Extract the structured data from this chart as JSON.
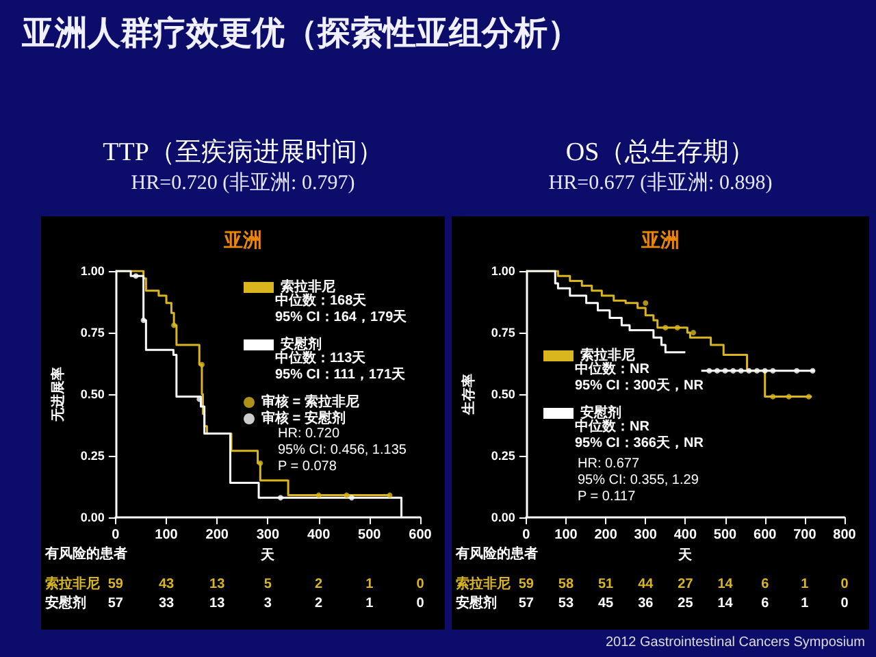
{
  "chart_data": [
    {
      "type": "step",
      "title": "TTP（至疾病进展时间）",
      "subtitle": "HR=0.720 (非亚洲: 0.797)",
      "xlabel": "天",
      "ylabel": "无进展率",
      "xlim": [
        0,
        600
      ],
      "xticks": [
        0,
        100,
        200,
        300,
        400,
        500,
        600
      ],
      "ylim": [
        0,
        1
      ],
      "yticks": [
        {
          "value": 0,
          "label": "0.00"
        },
        {
          "value": 0.25,
          "label": "0.25"
        },
        {
          "value": 0.5,
          "label": "0.50"
        },
        {
          "value": 0.75,
          "label": "0.75"
        },
        {
          "value": 1,
          "label": "1.00"
        }
      ],
      "legend": "top right",
      "grid": false,
      "series": [
        {
          "name": "索拉非尼",
          "color": "#d9b61e",
          "x": [
            0,
            55,
            60,
            85,
            100,
            110,
            115,
            120,
            165,
            170,
            172,
            175,
            180,
            228,
            280,
            285,
            340,
            540
          ],
          "values": [
            1,
            0.97,
            0.92,
            0.9,
            0.87,
            0.83,
            0.78,
            0.7,
            0.62,
            0.5,
            0.42,
            0.37,
            0.34,
            0.27,
            0.22,
            0.15,
            0.09,
            0.09
          ]
        },
        {
          "name": "安慰剂",
          "color": "#ffffff",
          "x": [
            0,
            30,
            55,
            60,
            114,
            120,
            168,
            175,
            226,
            282,
            563
          ],
          "values": [
            1,
            0.98,
            0.8,
            0.68,
            0.66,
            0.49,
            0.45,
            0.34,
            0.14,
            0.08,
            0
          ]
        },
        {
          "type": "scatter",
          "name": "审核 = 索拉非尼",
          "color": "#d9b61e",
          "x": [
            115,
            170,
            285,
            400,
            455,
            540
          ],
          "values": [
            0.78,
            0.62,
            0.22,
            0.09,
            0.09,
            0.09
          ]
        },
        {
          "type": "scatter",
          "name": "审核 = 安慰剂",
          "color": "#ffffff",
          "x": [
            40,
            55,
            165,
            325,
            465
          ],
          "values": [
            0.98,
            0.8,
            0.48,
            0.08,
            0.08
          ]
        }
      ],
      "annotations": [
        "亚洲",
        "中位数：168天",
        "95% CI：164，179天",
        "中位数：113天",
        "95% CI：111，171天",
        "HR: 0.720",
        "95% CI: 0.456, 1.135",
        "P = 0.078",
        "有风险的患者",
        "59 43 13 5 2 1 0",
        "57 33 13 3 2 1 0",
        "亚洲人群疗效更优（探索性亚组分析）"
      ]
    },
    {
      "type": "step",
      "title": "OS（总生存期）",
      "subtitle": "HR=0.677 (非亚洲: 0.898)",
      "xlabel": "天",
      "ylabel": "生存率",
      "xlim": [
        0,
        800
      ],
      "xticks": [
        0,
        100,
        200,
        300,
        400,
        500,
        600,
        700,
        800
      ],
      "ylim": [
        0,
        1
      ],
      "yticks": [
        {
          "value": 0,
          "label": "0.00"
        },
        {
          "value": 0.25,
          "label": "0.25"
        },
        {
          "value": 0.5,
          "label": "0.50"
        },
        {
          "value": 0.75,
          "label": "0.75"
        },
        {
          "value": 1,
          "label": "1.00"
        }
      ],
      "legend": "left",
      "grid": false,
      "series": [
        {
          "name": "索拉非尼",
          "color": "#d9b61e",
          "x": [
            0,
            80,
            110,
            140,
            165,
            190,
            220,
            250,
            280,
            300,
            320,
            330,
            405,
            412,
            464,
            496,
            555,
            600,
            718
          ],
          "values": [
            1,
            0.98,
            0.96,
            0.94,
            0.92,
            0.9,
            0.88,
            0.87,
            0.85,
            0.82,
            0.8,
            0.77,
            0.75,
            0.73,
            0.7,
            0.66,
            0.595,
            0.49,
            0.49
          ]
        },
        {
          "name": "安慰剂",
          "color": "#ffffff",
          "x": [
            0,
            73,
            80,
            110,
            151,
            180,
            210,
            240,
            260,
            300,
            320,
            340,
            350,
            370,
            400,
            440,
            725
          ],
          "values": [
            1,
            0.95,
            0.93,
            0.9,
            0.87,
            0.84,
            0.81,
            0.78,
            0.76,
            0.76,
            0.73,
            0.7,
            0.67,
            0.67,
            null,
            0.595,
            0.595
          ]
        },
        {
          "type": "scatter",
          "color": "#d9b61e",
          "x": [
            300,
            350,
            380,
            420,
            620,
            660,
            710
          ],
          "values": [
            0.87,
            0.77,
            0.77,
            0.75,
            0.49,
            0.49,
            0.49
          ]
        },
        {
          "type": "scatter",
          "color": "#ffffff",
          "x": [
            460,
            480,
            500,
            520,
            540,
            560,
            580,
            600,
            620,
            680,
            720
          ],
          "values": [
            0.595,
            0.595,
            0.595,
            0.595,
            0.595,
            0.595,
            0.595,
            0.595,
            0.595,
            0.595,
            0.595
          ]
        }
      ],
      "annotations": [
        "亚洲",
        "中位数：NR",
        "95% CI：300天，NR",
        "中位数：NR",
        "95% CI：366天，NR",
        "HR: 0.677",
        "95% CI: 0.355, 1.29",
        "P = 0.117",
        "有风险的患者",
        "59 58 51 44 27 14 6 1 0",
        "57 53 45 36 25 14 6 1 0",
        "2012 Gastrointestinal Cancers Symposium"
      ]
    }
  ]
}
